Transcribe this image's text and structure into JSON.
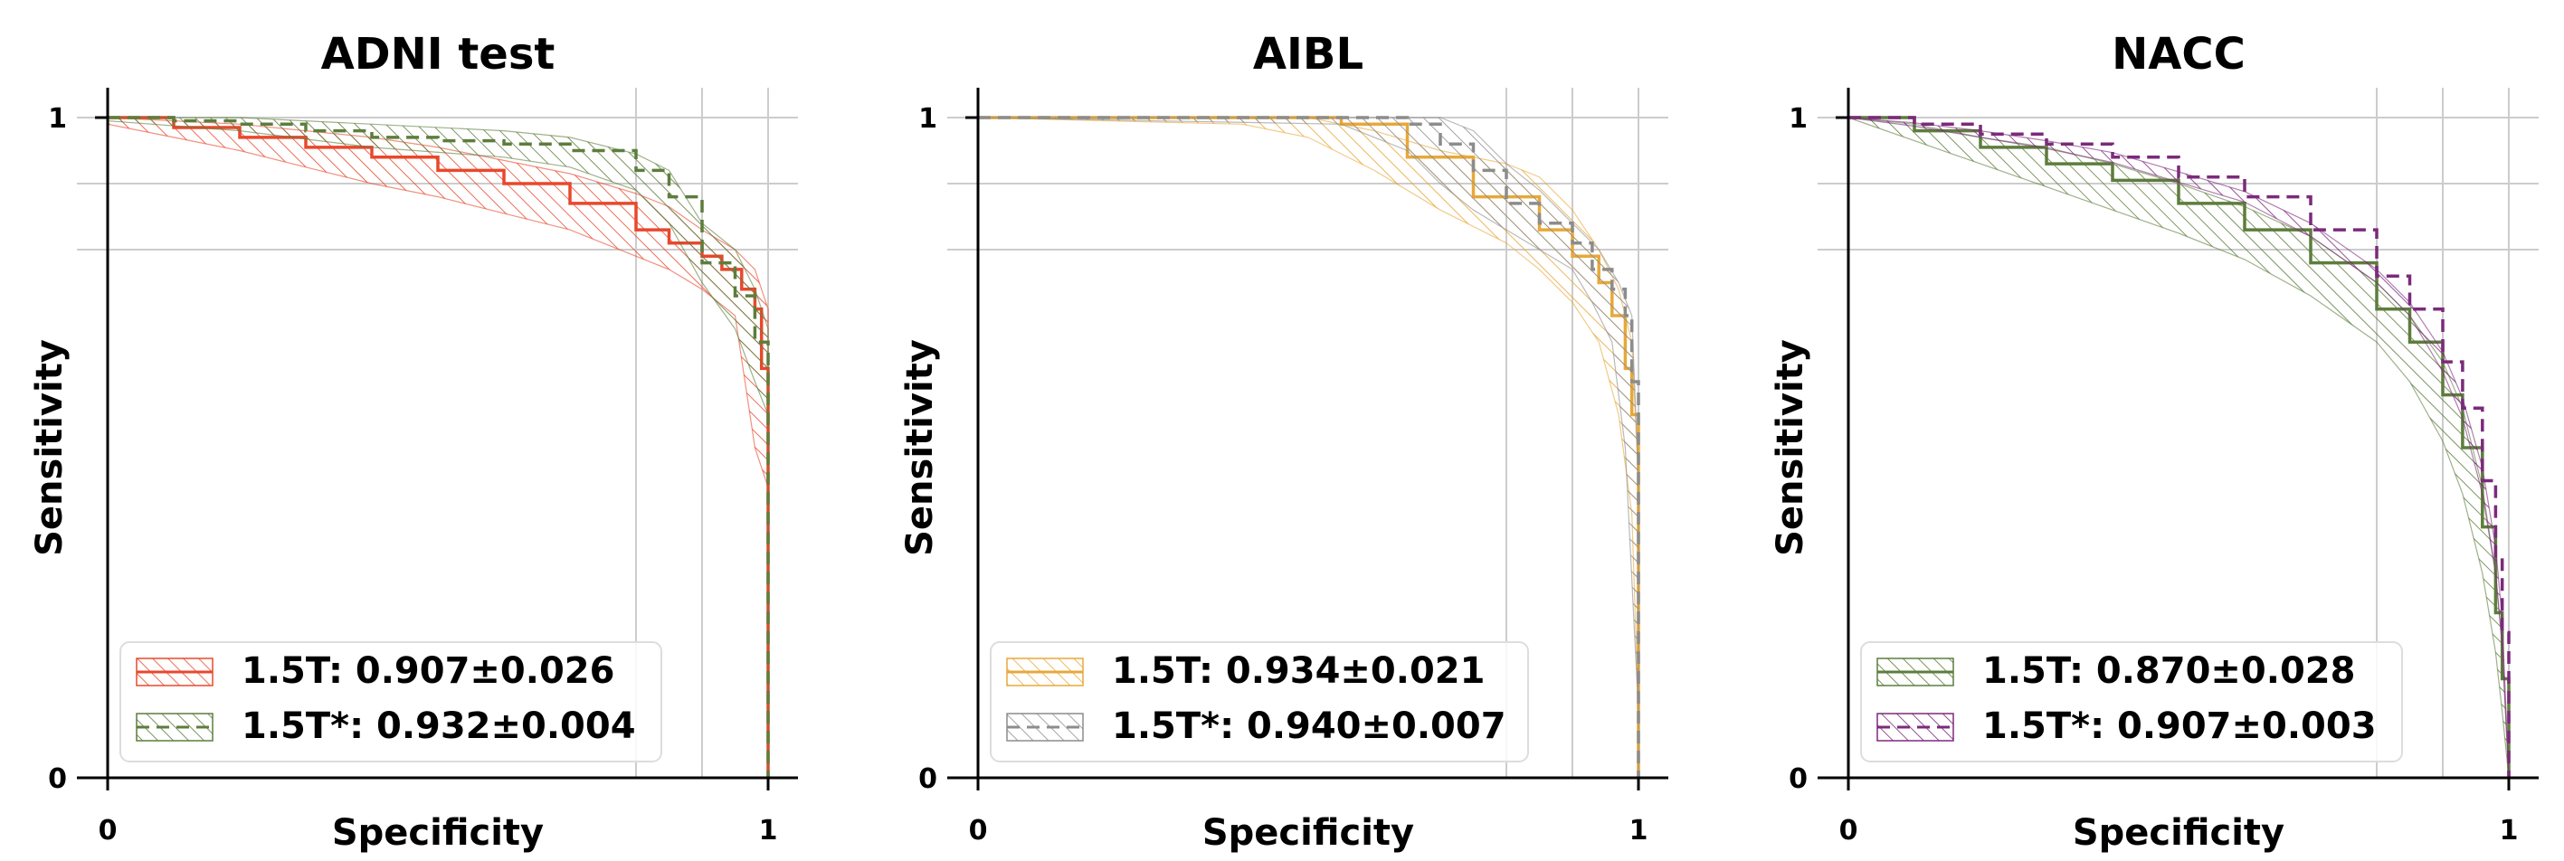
{
  "chart_data": [
    {
      "type": "line",
      "title": "ADNI test",
      "xlabel": "Specificity",
      "ylabel": "Sensitivity",
      "xlim": [
        0,
        1
      ],
      "ylim": [
        0,
        1
      ],
      "xticks": [
        "0",
        "1"
      ],
      "yticks": [
        "0",
        "1"
      ],
      "grid": true,
      "legend_position": "lower-left",
      "series": [
        {
          "name": "1.5T: 0.907±0.026",
          "color": "#e8482c",
          "style": "solid",
          "points": [
            [
              0,
              1.0
            ],
            [
              0.1,
              0.985
            ],
            [
              0.2,
              0.97
            ],
            [
              0.3,
              0.955
            ],
            [
              0.4,
              0.94
            ],
            [
              0.5,
              0.92
            ],
            [
              0.6,
              0.9
            ],
            [
              0.7,
              0.87
            ],
            [
              0.8,
              0.83
            ],
            [
              0.85,
              0.81
            ],
            [
              0.9,
              0.79
            ],
            [
              0.93,
              0.77
            ],
            [
              0.96,
              0.74
            ],
            [
              0.98,
              0.71
            ],
            [
              0.99,
              0.62
            ],
            [
              1.0,
              0.52
            ],
            [
              1.0,
              0.0
            ]
          ],
          "band_upper": [
            [
              0,
              1.0
            ],
            [
              0.1,
              0.995
            ],
            [
              0.2,
              0.99
            ],
            [
              0.3,
              0.98
            ],
            [
              0.4,
              0.97
            ],
            [
              0.5,
              0.955
            ],
            [
              0.6,
              0.935
            ],
            [
              0.7,
              0.915
            ],
            [
              0.8,
              0.885
            ],
            [
              0.85,
              0.865
            ],
            [
              0.9,
              0.83
            ],
            [
              0.95,
              0.8
            ],
            [
              0.98,
              0.77
            ],
            [
              1.0,
              0.71
            ],
            [
              1.0,
              0.0
            ]
          ],
          "band_lower": [
            [
              0,
              0.99
            ],
            [
              0.1,
              0.97
            ],
            [
              0.2,
              0.95
            ],
            [
              0.3,
              0.925
            ],
            [
              0.4,
              0.9
            ],
            [
              0.5,
              0.88
            ],
            [
              0.6,
              0.855
            ],
            [
              0.7,
              0.83
            ],
            [
              0.8,
              0.79
            ],
            [
              0.85,
              0.77
            ],
            [
              0.9,
              0.74
            ],
            [
              0.95,
              0.7
            ],
            [
              0.98,
              0.5
            ],
            [
              1.0,
              0.44
            ],
            [
              1.0,
              0.0
            ]
          ]
        },
        {
          "name": "1.5T*: 0.932±0.004",
          "color": "#5d7d3c",
          "style": "dashed",
          "points": [
            [
              0,
              1.0
            ],
            [
              0.1,
              0.995
            ],
            [
              0.2,
              0.99
            ],
            [
              0.3,
              0.98
            ],
            [
              0.4,
              0.97
            ],
            [
              0.5,
              0.965
            ],
            [
              0.6,
              0.96
            ],
            [
              0.7,
              0.95
            ],
            [
              0.8,
              0.92
            ],
            [
              0.85,
              0.88
            ],
            [
              0.9,
              0.78
            ],
            [
              0.95,
              0.73
            ],
            [
              0.98,
              0.66
            ],
            [
              1.0,
              0.6
            ],
            [
              1.0,
              0.0
            ]
          ],
          "band_upper": [
            [
              0,
              1.0
            ],
            [
              0.2,
              1.0
            ],
            [
              0.4,
              0.99
            ],
            [
              0.6,
              0.98
            ],
            [
              0.7,
              0.97
            ],
            [
              0.8,
              0.945
            ],
            [
              0.85,
              0.92
            ],
            [
              0.9,
              0.84
            ],
            [
              0.95,
              0.8
            ],
            [
              0.98,
              0.74
            ],
            [
              1.0,
              0.68
            ],
            [
              1.0,
              0.0
            ]
          ],
          "band_lower": [
            [
              0,
              0.995
            ],
            [
              0.2,
              0.98
            ],
            [
              0.4,
              0.955
            ],
            [
              0.6,
              0.94
            ],
            [
              0.7,
              0.925
            ],
            [
              0.8,
              0.89
            ],
            [
              0.85,
              0.84
            ],
            [
              0.9,
              0.75
            ],
            [
              0.95,
              0.68
            ],
            [
              0.98,
              0.6
            ],
            [
              1.0,
              0.55
            ],
            [
              1.0,
              0.0
            ]
          ]
        }
      ]
    },
    {
      "type": "line",
      "title": "AIBL",
      "xlabel": "Specificity",
      "ylabel": "Sensitivity",
      "xlim": [
        0,
        1
      ],
      "ylim": [
        0,
        1
      ],
      "xticks": [
        "0",
        "1"
      ],
      "yticks": [
        "0",
        "1"
      ],
      "grid": true,
      "legend_position": "lower-left",
      "series": [
        {
          "name": "1.5T: 0.934±0.021",
          "color": "#e8a838",
          "style": "solid",
          "points": [
            [
              0,
              1.0
            ],
            [
              0.45,
              1.0
            ],
            [
              0.55,
              0.99
            ],
            [
              0.65,
              0.94
            ],
            [
              0.75,
              0.88
            ],
            [
              0.85,
              0.83
            ],
            [
              0.9,
              0.79
            ],
            [
              0.94,
              0.75
            ],
            [
              0.96,
              0.7
            ],
            [
              0.98,
              0.62
            ],
            [
              0.99,
              0.55
            ],
            [
              1.0,
              0.25
            ],
            [
              1.0,
              0.0
            ]
          ],
          "band_upper": [
            [
              0,
              1.0
            ],
            [
              0.5,
              1.0
            ],
            [
              0.6,
              0.98
            ],
            [
              0.7,
              0.95
            ],
            [
              0.8,
              0.93
            ],
            [
              0.85,
              0.91
            ],
            [
              0.9,
              0.86
            ],
            [
              0.94,
              0.8
            ],
            [
              0.97,
              0.74
            ],
            [
              0.99,
              0.66
            ],
            [
              1.0,
              0.45
            ],
            [
              1.0,
              0.0
            ]
          ],
          "band_lower": [
            [
              0,
              1.0
            ],
            [
              0.4,
              0.99
            ],
            [
              0.5,
              0.97
            ],
            [
              0.6,
              0.92
            ],
            [
              0.7,
              0.86
            ],
            [
              0.8,
              0.81
            ],
            [
              0.85,
              0.77
            ],
            [
              0.9,
              0.72
            ],
            [
              0.94,
              0.66
            ],
            [
              0.97,
              0.55
            ],
            [
              0.99,
              0.4
            ],
            [
              1.0,
              0.1
            ],
            [
              1.0,
              0.0
            ]
          ]
        },
        {
          "name": "1.5T*: 0.940±0.007",
          "color": "#8c8c8c",
          "style": "dashed",
          "points": [
            [
              0,
              1.0
            ],
            [
              0.55,
              1.0
            ],
            [
              0.65,
              0.99
            ],
            [
              0.7,
              0.96
            ],
            [
              0.75,
              0.92
            ],
            [
              0.8,
              0.87
            ],
            [
              0.85,
              0.84
            ],
            [
              0.9,
              0.81
            ],
            [
              0.93,
              0.77
            ],
            [
              0.96,
              0.74
            ],
            [
              0.98,
              0.7
            ],
            [
              0.99,
              0.6
            ],
            [
              1.0,
              0.25
            ],
            [
              1.0,
              0.0
            ]
          ],
          "band_upper": [
            [
              0,
              1.0
            ],
            [
              0.7,
              1.0
            ],
            [
              0.75,
              0.98
            ],
            [
              0.8,
              0.93
            ],
            [
              0.85,
              0.89
            ],
            [
              0.9,
              0.84
            ],
            [
              0.94,
              0.8
            ],
            [
              0.97,
              0.75
            ],
            [
              0.99,
              0.7
            ],
            [
              1.0,
              0.45
            ],
            [
              1.0,
              0.0
            ]
          ],
          "band_lower": [
            [
              0,
              1.0
            ],
            [
              0.55,
              0.99
            ],
            [
              0.65,
              0.95
            ],
            [
              0.7,
              0.9
            ],
            [
              0.75,
              0.86
            ],
            [
              0.8,
              0.83
            ],
            [
              0.85,
              0.8
            ],
            [
              0.9,
              0.77
            ],
            [
              0.93,
              0.72
            ],
            [
              0.96,
              0.66
            ],
            [
              0.98,
              0.5
            ],
            [
              0.99,
              0.3
            ],
            [
              1.0,
              0.1
            ],
            [
              1.0,
              0.0
            ]
          ]
        }
      ]
    },
    {
      "type": "line",
      "title": "NACC",
      "xlabel": "Specificity",
      "ylabel": "Sensitivity",
      "xlim": [
        0,
        1
      ],
      "ylim": [
        0,
        1
      ],
      "xticks": [
        "0",
        "1"
      ],
      "yticks": [
        "0",
        "1"
      ],
      "grid": true,
      "legend_position": "lower-left",
      "series": [
        {
          "name": "1.5T: 0.870±0.028",
          "color": "#5d7d3c",
          "style": "solid",
          "points": [
            [
              0,
              1.0
            ],
            [
              0.1,
              0.98
            ],
            [
              0.2,
              0.955
            ],
            [
              0.3,
              0.93
            ],
            [
              0.4,
              0.905
            ],
            [
              0.5,
              0.87
            ],
            [
              0.6,
              0.83
            ],
            [
              0.7,
              0.78
            ],
            [
              0.8,
              0.71
            ],
            [
              0.85,
              0.66
            ],
            [
              0.9,
              0.58
            ],
            [
              0.93,
              0.5
            ],
            [
              0.96,
              0.38
            ],
            [
              0.98,
              0.25
            ],
            [
              0.99,
              0.15
            ],
            [
              1.0,
              0.0
            ]
          ],
          "band_upper": [
            [
              0,
              1.0
            ],
            [
              0.1,
              0.99
            ],
            [
              0.2,
              0.97
            ],
            [
              0.3,
              0.955
            ],
            [
              0.4,
              0.93
            ],
            [
              0.5,
              0.9
            ],
            [
              0.6,
              0.865
            ],
            [
              0.7,
              0.82
            ],
            [
              0.8,
              0.75
            ],
            [
              0.85,
              0.7
            ],
            [
              0.9,
              0.63
            ],
            [
              0.93,
              0.56
            ],
            [
              0.96,
              0.44
            ],
            [
              0.98,
              0.31
            ],
            [
              0.99,
              0.2
            ],
            [
              1.0,
              0.0
            ]
          ],
          "band_lower": [
            [
              0,
              1.0
            ],
            [
              0.1,
              0.965
            ],
            [
              0.2,
              0.93
            ],
            [
              0.3,
              0.895
            ],
            [
              0.4,
              0.86
            ],
            [
              0.5,
              0.825
            ],
            [
              0.6,
              0.785
            ],
            [
              0.7,
              0.73
            ],
            [
              0.8,
              0.66
            ],
            [
              0.85,
              0.6
            ],
            [
              0.9,
              0.51
            ],
            [
              0.93,
              0.43
            ],
            [
              0.96,
              0.31
            ],
            [
              0.98,
              0.19
            ],
            [
              0.99,
              0.1
            ],
            [
              1.0,
              0.0
            ]
          ]
        },
        {
          "name": "1.5T*: 0.907±0.003",
          "color": "#7b2a7b",
          "style": "dashed",
          "points": [
            [
              0,
              1.0
            ],
            [
              0.1,
              0.99
            ],
            [
              0.2,
              0.975
            ],
            [
              0.3,
              0.96
            ],
            [
              0.4,
              0.94
            ],
            [
              0.5,
              0.91
            ],
            [
              0.6,
              0.88
            ],
            [
              0.7,
              0.83
            ],
            [
              0.8,
              0.76
            ],
            [
              0.85,
              0.71
            ],
            [
              0.9,
              0.63
            ],
            [
              0.93,
              0.56
            ],
            [
              0.96,
              0.45
            ],
            [
              0.98,
              0.33
            ],
            [
              0.99,
              0.22
            ],
            [
              1.0,
              0.0
            ]
          ],
          "band_upper": [
            [
              0,
              1.0
            ],
            [
              0.1,
              0.992
            ],
            [
              0.2,
              0.98
            ],
            [
              0.3,
              0.965
            ],
            [
              0.4,
              0.947
            ],
            [
              0.5,
              0.918
            ],
            [
              0.6,
              0.888
            ],
            [
              0.7,
              0.84
            ],
            [
              0.8,
              0.77
            ],
            [
              0.85,
              0.72
            ],
            [
              0.9,
              0.645
            ],
            [
              0.93,
              0.575
            ],
            [
              0.96,
              0.47
            ],
            [
              0.98,
              0.35
            ],
            [
              0.99,
              0.24
            ],
            [
              1.0,
              0.0
            ]
          ],
          "band_lower": [
            [
              0,
              1.0
            ],
            [
              0.1,
              0.987
            ],
            [
              0.2,
              0.97
            ],
            [
              0.3,
              0.953
            ],
            [
              0.4,
              0.932
            ],
            [
              0.5,
              0.902
            ],
            [
              0.6,
              0.872
            ],
            [
              0.7,
              0.82
            ],
            [
              0.8,
              0.75
            ],
            [
              0.85,
              0.7
            ],
            [
              0.9,
              0.615
            ],
            [
              0.93,
              0.545
            ],
            [
              0.96,
              0.43
            ],
            [
              0.98,
              0.31
            ],
            [
              0.99,
              0.2
            ],
            [
              1.0,
              0.0
            ]
          ]
        }
      ]
    }
  ]
}
